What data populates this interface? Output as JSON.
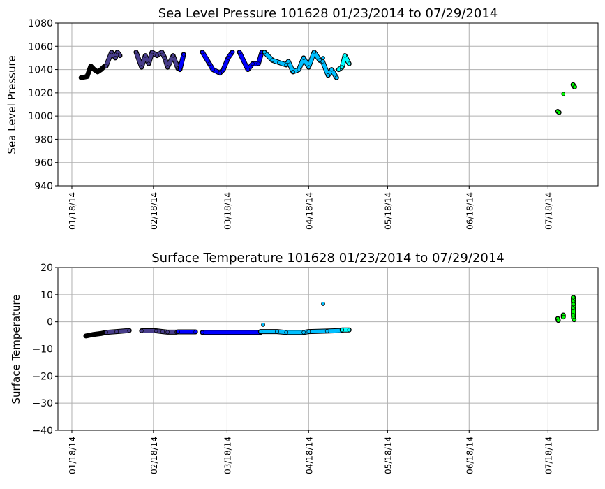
{
  "chart_data": [
    {
      "type": "scatter",
      "title": "Sea Level Pressure 101628  01/23/2014 to 07/29/2014",
      "xlabel": "",
      "ylabel": "Sea Level Pressure",
      "x_units": "days since 01/18/14",
      "xlim": [
        -5.3,
        200
      ],
      "ylim": [
        940,
        1080
      ],
      "yticks": [
        940,
        960,
        980,
        1000,
        1020,
        1040,
        1060,
        1080
      ],
      "xticks": [
        {
          "day": 0,
          "label": "01/18/14"
        },
        {
          "day": 31,
          "label": "02/18/14"
        },
        {
          "day": 59,
          "label": "03/18/14"
        },
        {
          "day": 90,
          "label": "04/18/14"
        },
        {
          "day": 120,
          "label": "05/18/14"
        },
        {
          "day": 151,
          "label": "06/18/14"
        },
        {
          "day": 181,
          "label": "07/18/14"
        }
      ],
      "grid": true,
      "series": [
        {
          "color": "#000000",
          "points": [
            [
              3.5,
              1033
            ],
            [
              5.8,
              1034
            ],
            [
              7.2,
              1043
            ],
            [
              8.5,
              1040
            ],
            [
              9.8,
              1038
            ],
            [
              11.1,
              1040
            ],
            [
              12.5,
              1043
            ],
            [
              13.0,
              1043
            ]
          ]
        },
        {
          "color": "#483d8b",
          "points": [
            [
              13.0,
              1043
            ],
            [
              15.1,
              1055
            ],
            [
              16.5,
              1050
            ],
            [
              17.3,
              1055
            ],
            [
              18.3,
              1052
            ]
          ]
        },
        {
          "color": "#483d8b",
          "points": [
            [
              24.4,
              1055
            ],
            [
              26.5,
              1042
            ],
            [
              27.9,
              1052
            ],
            [
              29.2,
              1045
            ],
            [
              30.5,
              1055
            ],
            [
              32.4,
              1052
            ],
            [
              34.2,
              1055
            ],
            [
              35.3,
              1050
            ],
            [
              36.4,
              1042
            ],
            [
              38.5,
              1052
            ],
            [
              40.3,
              1041
            ],
            [
              41.1,
              1045
            ]
          ]
        },
        {
          "color": "#0000ff",
          "points": [
            [
              41.1,
              1040
            ],
            [
              42.5,
              1053
            ]
          ]
        },
        {
          "color": "#0000ff",
          "points": [
            [
              49.6,
              1055
            ],
            [
              52.3,
              1045
            ],
            [
              53.6,
              1040
            ],
            [
              56.3,
              1037
            ],
            [
              57.6,
              1040
            ],
            [
              59.4,
              1050
            ],
            [
              61.0,
              1055
            ]
          ]
        },
        {
          "color": "#0000ff",
          "points": [
            [
              63.7,
              1055
            ],
            [
              66.9,
              1040
            ],
            [
              68.7,
              1045
            ],
            [
              70.9,
              1045
            ],
            [
              72.2,
              1055
            ]
          ]
        },
        {
          "color": "#00bfff",
          "points": [
            [
              73.2,
              1055
            ],
            [
              76.2,
              1048
            ],
            [
              78.8,
              1046
            ],
            [
              81.5,
              1044
            ],
            [
              82.3,
              1047
            ],
            [
              84.1,
              1038
            ],
            [
              86.3,
              1040
            ],
            [
              88.1,
              1050
            ],
            [
              90.0,
              1042
            ],
            [
              92.1,
              1055
            ],
            [
              94.2,
              1048
            ],
            [
              95.3,
              1047
            ],
            [
              97.4,
              1035
            ],
            [
              98.7,
              1040
            ],
            [
              100.6,
              1033
            ]
          ]
        },
        {
          "color": "#00bfff",
          "points": [
            [
              95.5,
              1050
            ]
          ]
        },
        {
          "color": "#00ffff",
          "points": [
            [
              101.4,
              1040
            ],
            [
              102.7,
              1042
            ],
            [
              103.8,
              1052
            ],
            [
              105.4,
              1045
            ]
          ]
        },
        {
          "color": "#00ff00",
          "points": [
            [
              184.7,
              1004
            ],
            [
              185.2,
              1003
            ]
          ]
        },
        {
          "color": "#00ff00",
          "points": [
            [
              186.8,
              1019
            ]
          ]
        },
        {
          "color": "#00ff00",
          "points": [
            [
              190.5,
              1027
            ],
            [
              191.1,
              1025
            ]
          ]
        }
      ]
    },
    {
      "type": "scatter",
      "title": "Surface Temperature 101628  01/23/2014 to 07/29/2014",
      "xlabel": "",
      "ylabel": "Surface Temperature",
      "x_units": "days since 01/18/14",
      "xlim": [
        -5.3,
        200
      ],
      "ylim": [
        -40,
        20
      ],
      "yticks": [
        -40,
        -30,
        -20,
        -10,
        0,
        10,
        20
      ],
      "xticks": [
        {
          "day": 0,
          "label": "01/18/14"
        },
        {
          "day": 31,
          "label": "02/18/14"
        },
        {
          "day": 59,
          "label": "03/18/14"
        },
        {
          "day": 90,
          "label": "04/18/14"
        },
        {
          "day": 120,
          "label": "05/18/14"
        },
        {
          "day": 151,
          "label": "06/18/14"
        },
        {
          "day": 181,
          "label": "07/18/14"
        }
      ],
      "grid": true,
      "series": [
        {
          "color": "#000000",
          "points": [
            [
              5.3,
              -5.2
            ],
            [
              8.0,
              -4.7
            ],
            [
              11.0,
              -4.3
            ],
            [
              13.0,
              -3.9
            ]
          ]
        },
        {
          "color": "#483d8b",
          "points": [
            [
              13.0,
              -3.9
            ],
            [
              17.0,
              -3.6
            ],
            [
              21.8,
              -3.2
            ]
          ]
        },
        {
          "color": "#483d8b",
          "points": [
            [
              26.5,
              -3.3
            ],
            [
              32.0,
              -3.3
            ],
            [
              34.5,
              -3.6
            ],
            [
              36.4,
              -3.8
            ],
            [
              39.8,
              -3.8
            ]
          ]
        },
        {
          "color": "#0000ff",
          "points": [
            [
              40.3,
              -3.7
            ],
            [
              47.0,
              -3.7
            ]
          ]
        },
        {
          "color": "#0000ff",
          "points": [
            [
              49.6,
              -3.9
            ],
            [
              71.7,
              -3.9
            ]
          ]
        },
        {
          "color": "#00bfff",
          "points": [
            [
              72.7,
              -1.1
            ]
          ]
        },
        {
          "color": "#00bfff",
          "points": [
            [
              71.7,
              -3.6
            ],
            [
              78.0,
              -3.6
            ],
            [
              81.5,
              -3.9
            ],
            [
              88.1,
              -3.9
            ],
            [
              90.0,
              -3.6
            ],
            [
              97.0,
              -3.4
            ],
            [
              102.7,
              -3.2
            ]
          ]
        },
        {
          "color": "#00bfff",
          "points": [
            [
              95.5,
              6.6
            ]
          ]
        },
        {
          "color": "#00ffff",
          "points": [
            [
              102.7,
              -3.0
            ],
            [
              105.4,
              -3.0
            ]
          ]
        },
        {
          "color": "#00ff00",
          "points": [
            [
              184.7,
              1.2
            ],
            [
              184.9,
              0.5
            ]
          ]
        },
        {
          "color": "#00ff00",
          "points": [
            [
              186.8,
              2.5
            ],
            [
              186.8,
              1.8
            ]
          ]
        },
        {
          "color": "#00ff00",
          "points": [
            [
              190.6,
              9.0
            ],
            [
              190.6,
              7.5
            ],
            [
              190.7,
              6.5
            ],
            [
              190.6,
              5.0
            ],
            [
              190.6,
              2.5
            ],
            [
              190.7,
              1.5
            ],
            [
              190.9,
              0.8
            ]
          ]
        }
      ]
    }
  ]
}
